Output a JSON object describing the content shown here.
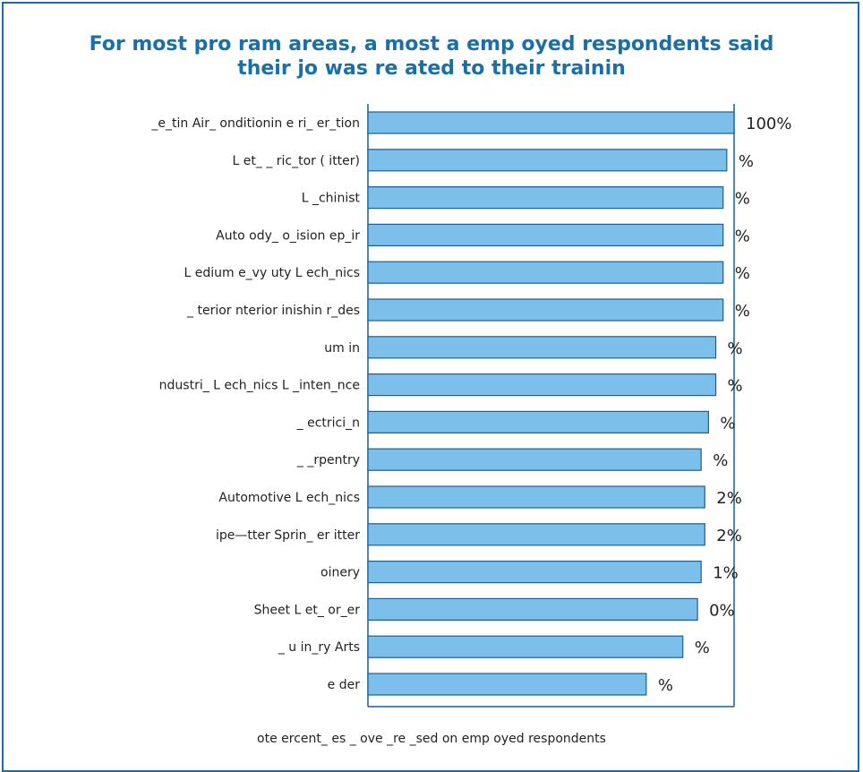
{
  "title": {
    "line1": "For most pro  ram areas, a most a   emp oyed respondents said",
    "line2": "their jo    was re ated to their trainin"
  },
  "note": "ote  ercent_  es _  ove _re   _sed on emp oyed respondents",
  "colors": {
    "bar_fill": "#7bbfea",
    "bar_stroke": "#1b5f95",
    "frame": "#1b6fa8",
    "title": "#1b6fa8"
  },
  "chart_data": {
    "type": "bar",
    "orientation": "horizontal",
    "title": "For most pro  ram areas, a most a   emp oyed respondents said their jo    was re ated to their trainin",
    "xlim": [
      0,
      100
    ],
    "grid": false,
    "legend": "none",
    "categories": [
      "_e_tin  Air_ onditionin     e ri_ er_tion",
      "L et_   _ ric_tor ( itter)",
      "L _chinist",
      "Auto  ody_ o_ision    ep_ir",
      "L edium  e_vy   uty L ech_nics",
      "_ terior    nterior  inishin    r_des",
      "  um  in",
      " ndustri_  L ech_nics    L _inten_nce",
      "_ ectrici_n",
      "_ _rpentry",
      "Automotive L ech_nics",
      "  ipe—tter    Sprin_ er  itter",
      "oinery",
      "Sheet L et_     or_er",
      "_ u in_ry Arts",
      "e der"
    ],
    "values": [
      100,
      98,
      97,
      97,
      97,
      97,
      95,
      95,
      93,
      91,
      92,
      92,
      91,
      90,
      86,
      76
    ],
    "value_labels": [
      "100%",
      "%",
      "%",
      "%",
      "%",
      "%",
      "%",
      "%",
      "%",
      "%",
      "2%",
      "2%",
      "1%",
      "0%",
      "%",
      "%"
    ]
  }
}
